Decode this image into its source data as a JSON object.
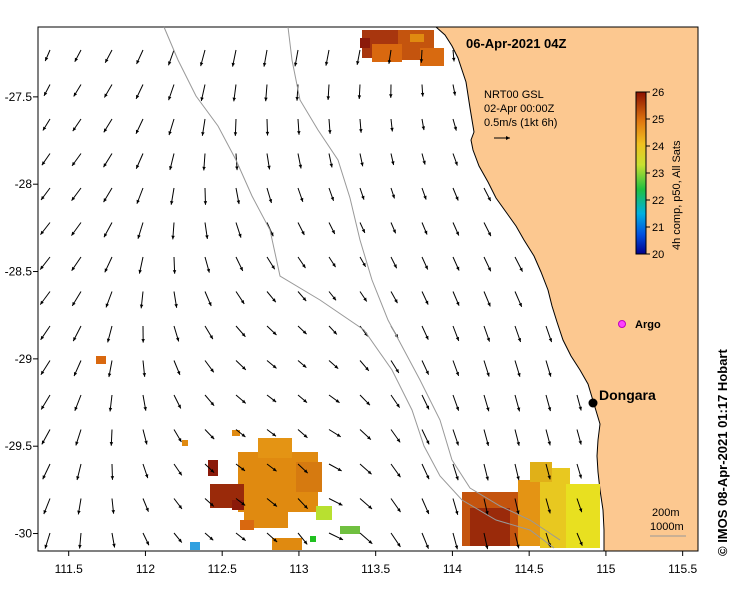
{
  "title": "06-Apr-2021 04Z",
  "legend": {
    "source": "NRT00 GSL",
    "time": "02-Apr 00:00Z",
    "scale": "0.5m/s (1kt 6h)"
  },
  "colorbar": {
    "label": "4h comp, p50, All Sats",
    "min": 20,
    "max": 26,
    "ticks": [
      "20",
      "21",
      "22",
      "23",
      "24",
      "25",
      "26"
    ]
  },
  "places": {
    "dongara": "Dongara",
    "argo": "Argo"
  },
  "isobaths": [
    "200m",
    "1000m"
  ],
  "credit": "© IMOS 08-Apr-2021 01:17 Hobart",
  "axes": {
    "x_ticks": [
      "111.5",
      "112",
      "112.5",
      "113",
      "113.5",
      "114",
      "114.5",
      "115",
      "115.5"
    ],
    "y_ticks": [
      "-27.5",
      "-28",
      "-28.5",
      "-29",
      "-29.5",
      "-30"
    ],
    "lon_range": [
      111.3,
      115.6
    ],
    "lat_range": [
      -30.1,
      -27.1
    ]
  },
  "colors": {
    "land": "#fcc890",
    "sst_high": "#8b1a0a",
    "sst_mid": "#e08a10",
    "sst_low": "#e8e020"
  }
}
